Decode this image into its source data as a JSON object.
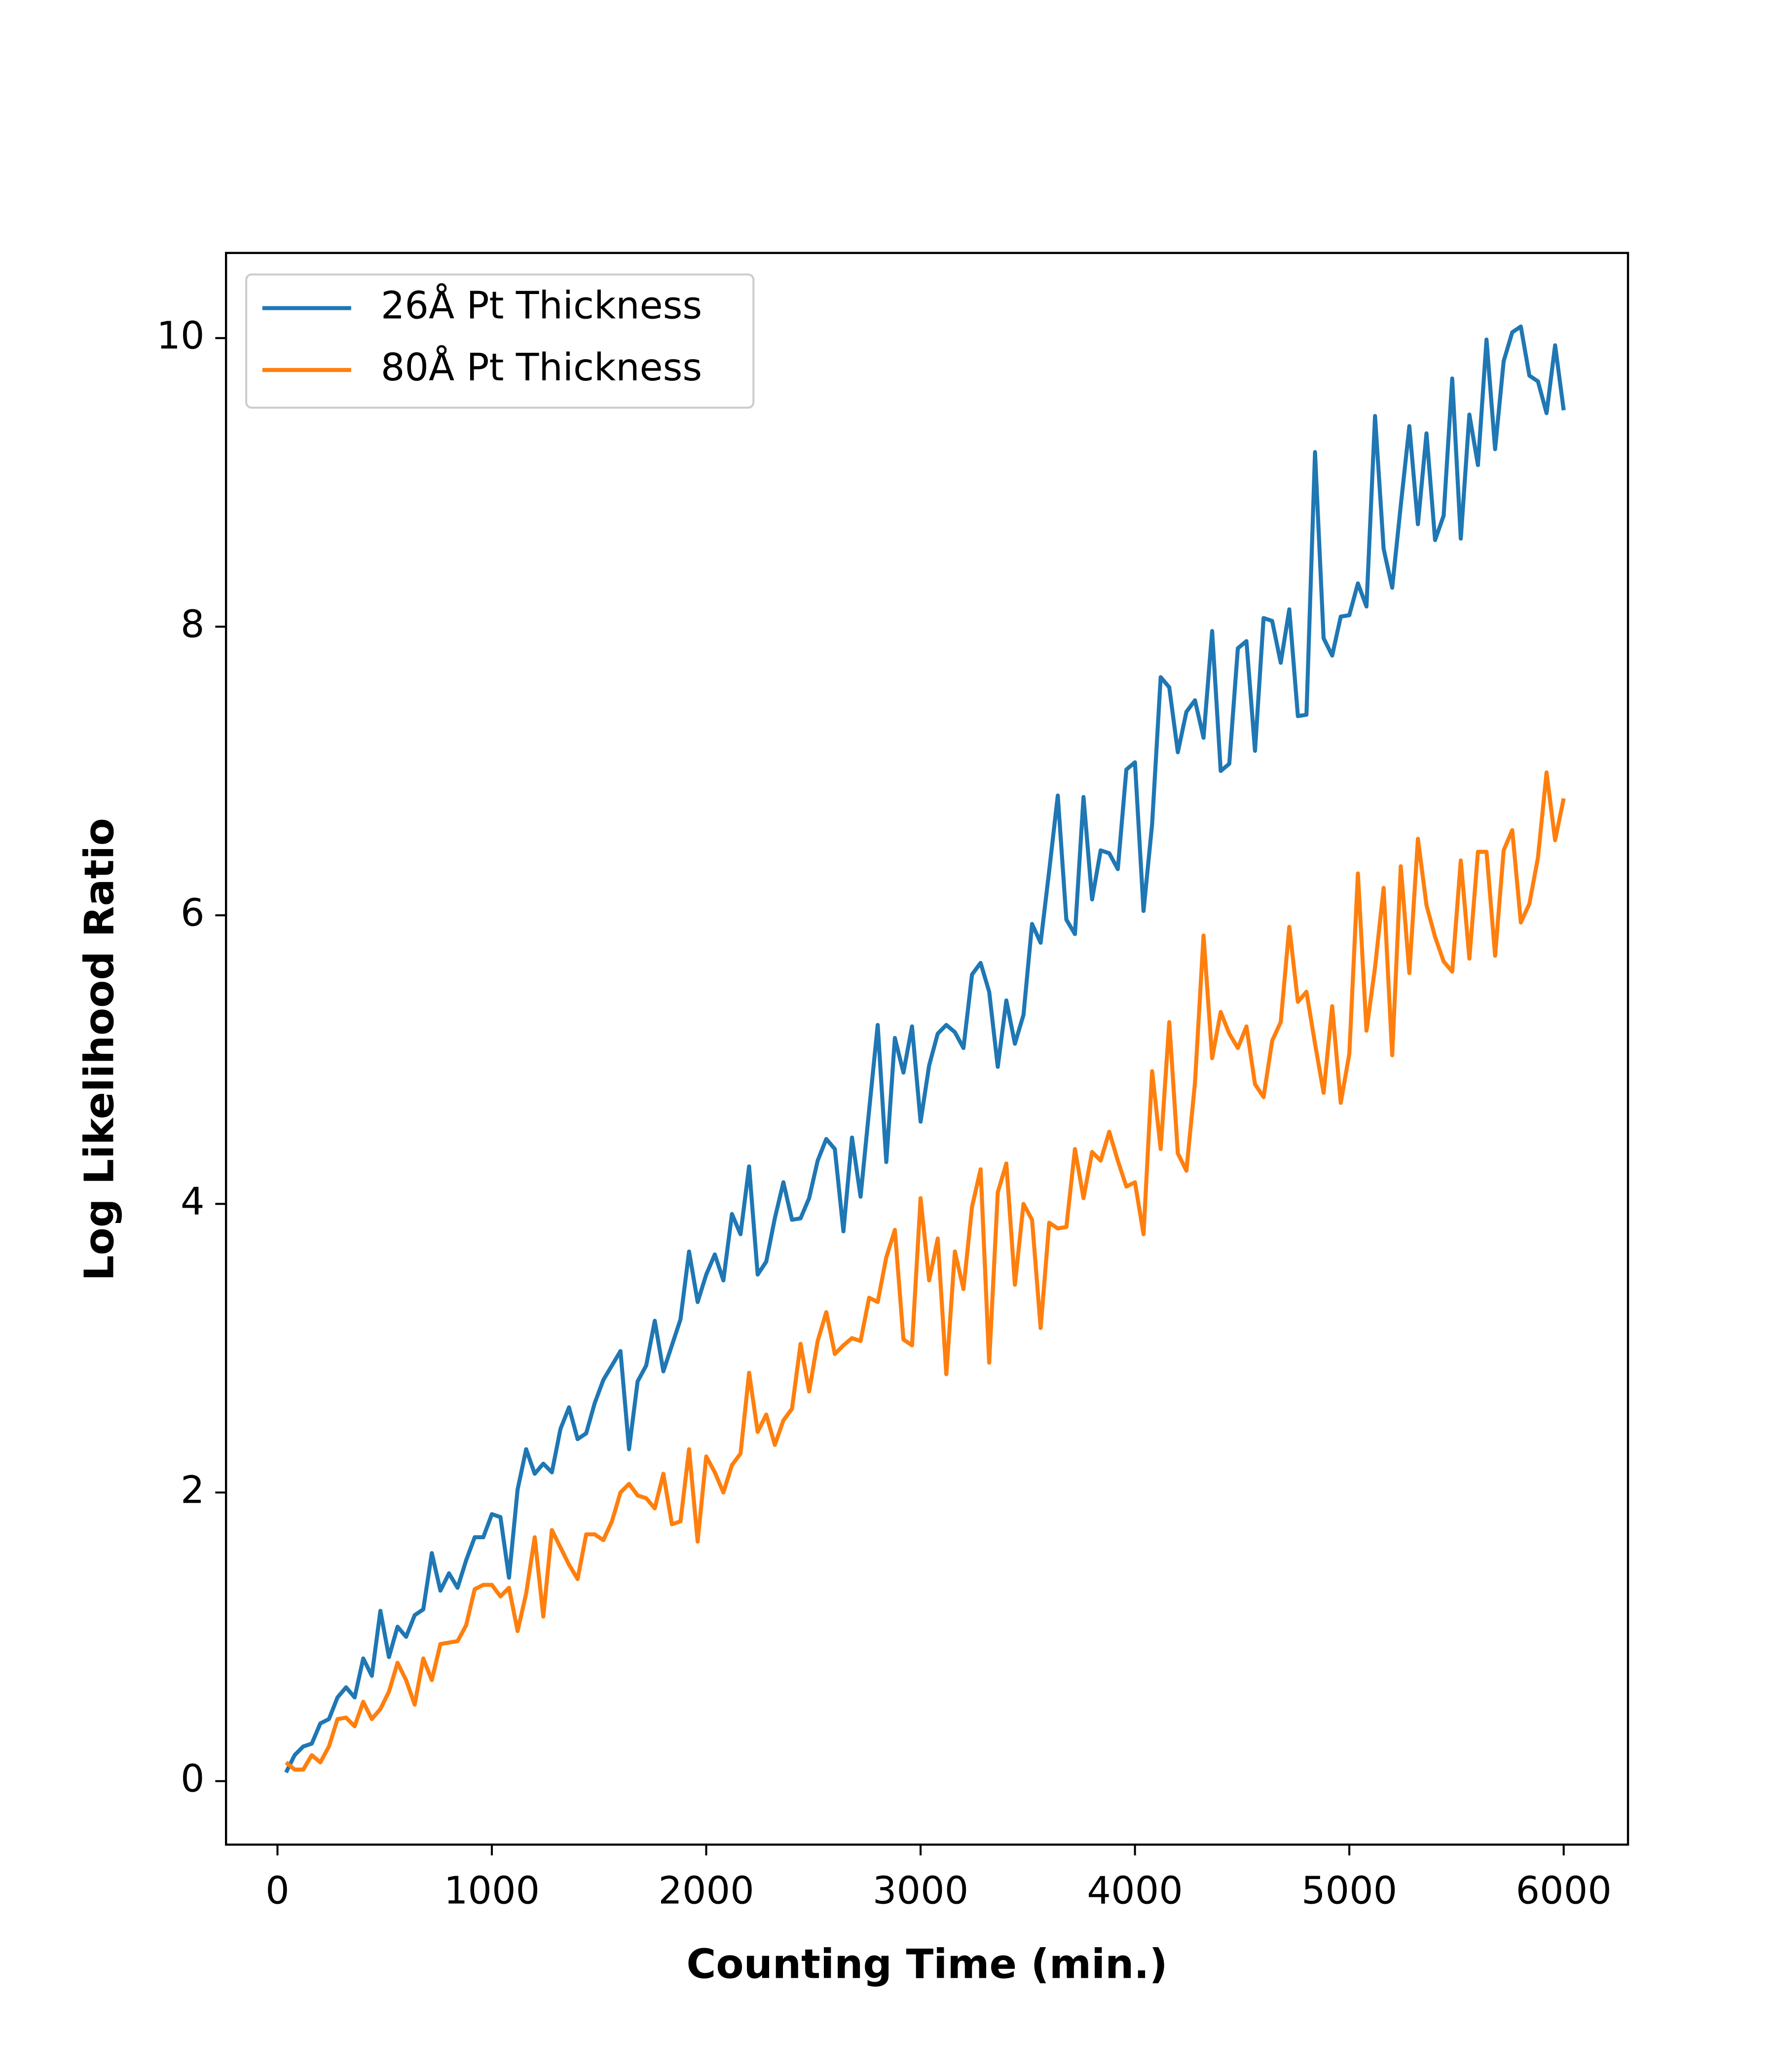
{
  "chart_data": {
    "type": "line",
    "xlabel": "Counting Time (min.)",
    "ylabel": "Log Likelihood Ratio",
    "x": [
      40,
      80,
      120,
      160,
      200,
      240,
      280,
      320,
      360,
      400,
      440,
      480,
      520,
      560,
      600,
      640,
      680,
      720,
      760,
      800,
      840,
      880,
      920,
      960,
      1000,
      1040,
      1080,
      1120,
      1160,
      1200,
      1240,
      1280,
      1320,
      1360,
      1400,
      1440,
      1480,
      1520,
      1560,
      1600,
      1640,
      1680,
      1720,
      1760,
      1800,
      1840,
      1880,
      1920,
      1960,
      2000,
      2040,
      2080,
      2120,
      2160,
      2200,
      2240,
      2280,
      2320,
      2360,
      2400,
      2440,
      2480,
      2520,
      2560,
      2600,
      2640,
      2680,
      2720,
      2760,
      2800,
      2840,
      2880,
      2920,
      2960,
      3000,
      3040,
      3080,
      3120,
      3160,
      3200,
      3240,
      3280,
      3320,
      3360,
      3400,
      3440,
      3480,
      3520,
      3560,
      3600,
      3640,
      3680,
      3720,
      3760,
      3800,
      3840,
      3880,
      3920,
      3960,
      4000,
      4040,
      4080,
      4120,
      4160,
      4200,
      4240,
      4280,
      4320,
      4360,
      4400,
      4440,
      4480,
      4520,
      4560,
      4600,
      4640,
      4680,
      4720,
      4760,
      4800,
      4840,
      4880,
      4920,
      4960,
      5000,
      5040,
      5080,
      5120,
      5160,
      5200,
      5240,
      5280,
      5320,
      5360,
      5400,
      5440,
      5480,
      5520,
      5560,
      5600,
      5640,
      5680,
      5720,
      5760,
      5800,
      5840,
      5880,
      5920,
      5960,
      6000
    ],
    "series": [
      {
        "name": "26Å Pt Thickness",
        "color": "#1f77b4",
        "values": [
          0.06,
          0.18,
          0.24,
          0.26,
          0.4,
          0.43,
          0.58,
          0.65,
          0.58,
          0.85,
          0.73,
          1.18,
          0.86,
          1.07,
          1.0,
          1.15,
          1.19,
          1.58,
          1.32,
          1.44,
          1.34,
          1.53,
          1.69,
          1.69,
          1.85,
          1.83,
          1.41,
          2.02,
          2.3,
          2.13,
          2.2,
          2.14,
          2.44,
          2.59,
          2.37,
          2.41,
          2.62,
          2.78,
          2.88,
          2.98,
          2.3,
          2.77,
          2.88,
          3.19,
          2.84,
          3.02,
          3.2,
          3.67,
          3.32,
          3.51,
          3.65,
          3.47,
          3.93,
          3.79,
          4.26,
          3.51,
          3.6,
          3.9,
          4.15,
          3.89,
          3.9,
          4.04,
          4.3,
          4.45,
          4.38,
          3.81,
          4.46,
          4.05,
          4.65,
          5.24,
          4.29,
          5.15,
          4.91,
          5.23,
          4.57,
          4.96,
          5.18,
          5.24,
          5.19,
          5.08,
          5.59,
          5.67,
          5.47,
          4.95,
          5.41,
          5.11,
          5.31,
          5.94,
          5.81,
          6.31,
          6.83,
          5.97,
          5.87,
          6.82,
          6.11,
          6.45,
          6.43,
          6.32,
          7.01,
          7.06,
          6.03,
          6.63,
          7.65,
          7.58,
          7.13,
          7.41,
          7.49,
          7.23,
          7.97,
          7.0,
          7.05,
          7.85,
          7.9,
          7.14,
          8.06,
          8.04,
          7.75,
          8.12,
          7.38,
          7.39,
          9.21,
          7.92,
          7.8,
          8.07,
          8.08,
          8.3,
          8.14,
          9.46,
          8.54,
          8.27,
          8.84,
          9.39,
          8.71,
          9.34,
          8.6,
          8.77,
          9.72,
          8.61,
          9.47,
          9.12,
          9.99,
          9.23,
          9.84,
          10.04,
          10.08,
          9.74,
          9.7,
          9.48,
          9.95,
          9.5
        ]
      },
      {
        "name": "80Å Pt Thickness",
        "color": "#ff7f0e",
        "values": [
          0.13,
          0.08,
          0.08,
          0.18,
          0.13,
          0.24,
          0.43,
          0.44,
          0.38,
          0.55,
          0.43,
          0.5,
          0.62,
          0.82,
          0.7,
          0.53,
          0.85,
          0.7,
          0.95,
          0.96,
          0.97,
          1.08,
          1.33,
          1.36,
          1.36,
          1.28,
          1.34,
          1.04,
          1.3,
          1.69,
          1.14,
          1.74,
          1.62,
          1.5,
          1.4,
          1.71,
          1.71,
          1.67,
          1.8,
          2.0,
          2.06,
          1.98,
          1.96,
          1.89,
          2.13,
          1.78,
          1.8,
          2.3,
          1.66,
          2.25,
          2.14,
          2.0,
          2.19,
          2.27,
          2.83,
          2.42,
          2.54,
          2.33,
          2.5,
          2.58,
          3.03,
          2.7,
          3.05,
          3.25,
          2.96,
          3.02,
          3.07,
          3.05,
          3.35,
          3.32,
          3.63,
          3.82,
          3.06,
          3.02,
          4.04,
          3.47,
          3.76,
          2.82,
          3.67,
          3.41,
          3.98,
          4.24,
          2.9,
          4.08,
          4.28,
          3.44,
          4.0,
          3.89,
          3.14,
          3.87,
          3.83,
          3.84,
          4.38,
          4.04,
          4.36,
          4.3,
          4.5,
          4.3,
          4.12,
          4.15,
          3.79,
          4.92,
          4.38,
          5.26,
          4.35,
          4.23,
          4.84,
          5.86,
          5.01,
          5.33,
          5.18,
          5.08,
          5.23,
          4.83,
          4.74,
          5.13,
          5.26,
          5.92,
          5.4,
          5.47,
          5.11,
          4.77,
          5.37,
          4.7,
          5.04,
          6.29,
          5.2,
          5.64,
          6.19,
          5.03,
          6.34,
          5.6,
          6.53,
          6.07,
          5.85,
          5.68,
          5.61,
          6.38,
          5.7,
          6.44,
          6.44,
          5.72,
          6.45,
          6.59,
          5.95,
          6.08,
          6.4,
          6.99,
          6.52,
          6.81
        ]
      }
    ],
    "xlim": [
      -240,
      6300
    ],
    "ylim": [
      -0.44,
      10.59
    ],
    "xticks": [
      0,
      1000,
      2000,
      3000,
      4000,
      5000,
      6000
    ],
    "yticks": [
      0,
      2,
      4,
      6,
      8,
      10
    ],
    "legend": "upper left"
  }
}
